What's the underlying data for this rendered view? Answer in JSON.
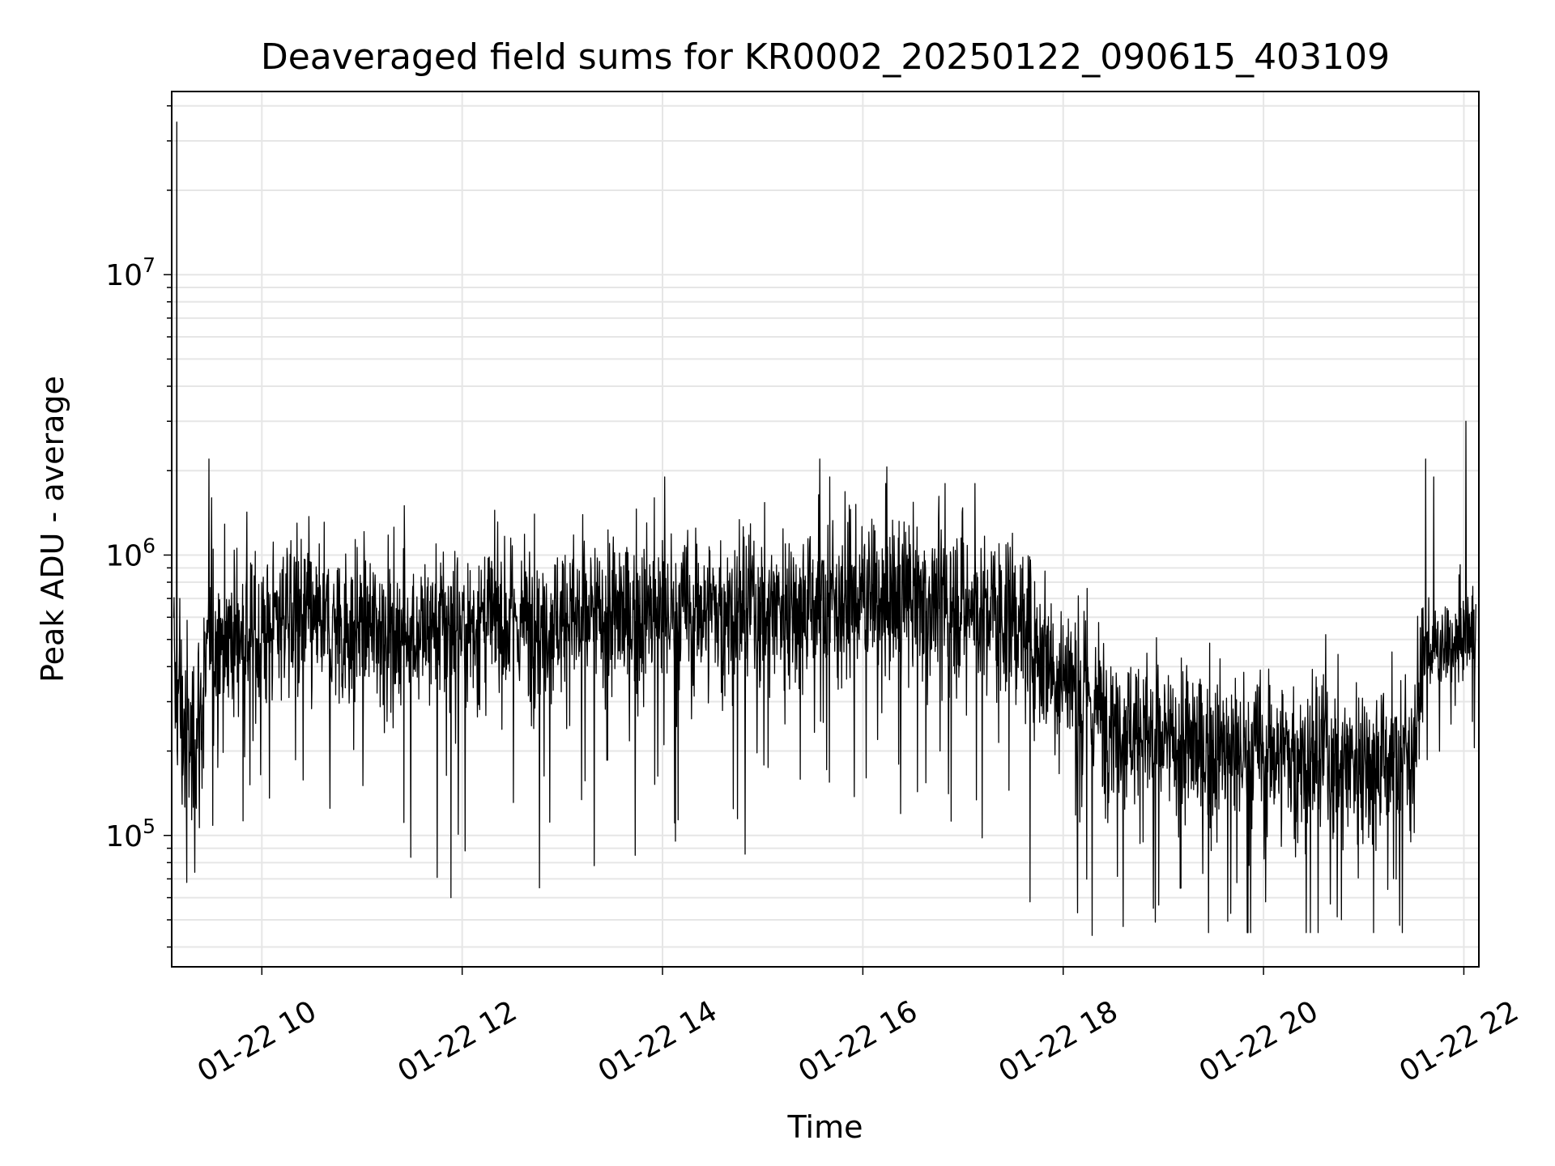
{
  "chart_data": {
    "type": "line",
    "title": "Deaveraged field sums for KR0002_20250122_090615_403109",
    "xlabel": "Time",
    "ylabel": "Peak ADU - average",
    "yscale": "log",
    "grid": true,
    "line_color": "#000000",
    "grid_color": "#e6e6e6",
    "xlim_hours": [
      9.1,
      22.15
    ],
    "ylim": [
      34000,
      45000000
    ],
    "xticks": [
      {
        "hour": 10,
        "label": "01-22 10"
      },
      {
        "hour": 12,
        "label": "01-22 12"
      },
      {
        "hour": 14,
        "label": "01-22 14"
      },
      {
        "hour": 16,
        "label": "01-22 16"
      },
      {
        "hour": 18,
        "label": "01-22 18"
      },
      {
        "hour": 20,
        "label": "01-22 20"
      },
      {
        "hour": 22,
        "label": "01-22 22"
      }
    ],
    "yticks": [
      {
        "value": 100000,
        "base": "10",
        "exp": "5"
      },
      {
        "value": 1000000,
        "base": "10",
        "exp": "6"
      },
      {
        "value": 10000000,
        "base": "10",
        "exp": "7"
      }
    ],
    "series": [
      {
        "x_hours": [
          9.1,
          9.2,
          9.3,
          9.4,
          9.5,
          9.75,
          10.0,
          10.25,
          10.5,
          10.75,
          11.0,
          11.5,
          12.0,
          12.5,
          13.0,
          13.5,
          14.0,
          14.5,
          15.0,
          15.5,
          16.0,
          16.5,
          17.0,
          17.5,
          17.7,
          18.0,
          18.3,
          18.7,
          19.0,
          19.5,
          20.0,
          20.5,
          21.0,
          21.3,
          21.5,
          21.62,
          21.8,
          22.0,
          22.15
        ],
        "median": [
          400000,
          250000,
          200000,
          280000,
          500000,
          520000,
          520000,
          650000,
          560000,
          550000,
          560000,
          540000,
          560000,
          580000,
          600000,
          590000,
          620000,
          640000,
          660000,
          690000,
          700000,
          700000,
          680000,
          600000,
          500000,
          380000,
          290000,
          240000,
          210000,
          200000,
          200000,
          190000,
          190000,
          190000,
          200000,
          460000,
          450000,
          520000,
          560000
        ],
        "spread": [
          0.45,
          0.6,
          0.6,
          0.55,
          0.45,
          0.45,
          0.45,
          0.45,
          0.45,
          0.45,
          0.45,
          0.45,
          0.45,
          0.45,
          0.45,
          0.45,
          0.45,
          0.45,
          0.45,
          0.45,
          0.45,
          0.45,
          0.45,
          0.45,
          0.45,
          0.45,
          0.45,
          0.45,
          0.45,
          0.45,
          0.45,
          0.45,
          0.45,
          0.45,
          0.45,
          0.25,
          0.25,
          0.25,
          0.25
        ],
        "spikes": [
          {
            "hour": 9.13,
            "value": 35000000
          },
          {
            "hour": 9.16,
            "value": 700000
          },
          {
            "hour": 9.23,
            "value": 68000
          },
          {
            "hour": 9.45,
            "value": 2200000
          },
          {
            "hour": 9.48,
            "value": 1600000
          },
          {
            "hour": 10.33,
            "value": 1300000
          },
          {
            "hour": 11.4,
            "value": 1500000
          },
          {
            "hour": 11.87,
            "value": 60000
          },
          {
            "hour": 12.7,
            "value": 1400000
          },
          {
            "hour": 12.75,
            "value": 65000
          },
          {
            "hour": 13.3,
            "value": 78000
          },
          {
            "hour": 13.9,
            "value": 1600000
          },
          {
            "hour": 14.0,
            "value": 1900000
          },
          {
            "hour": 15.55,
            "value": 2200000
          },
          {
            "hour": 15.65,
            "value": 1900000
          },
          {
            "hour": 16.8,
            "value": 1800000
          },
          {
            "hour": 17.1,
            "value": 1800000
          },
          {
            "hour": 17.65,
            "value": 58000
          },
          {
            "hour": 18.22,
            "value": 48000
          },
          {
            "hour": 18.27,
            "value": 44000
          },
          {
            "hour": 18.22,
            "value": 760000
          },
          {
            "hour": 18.88,
            "value": 55000
          },
          {
            "hour": 20.0,
            "value": 58000
          },
          {
            "hour": 20.6,
            "value": 520000
          },
          {
            "hour": 21.6,
            "value": 2200000
          },
          {
            "hour": 21.68,
            "value": 1900000
          },
          {
            "hour": 22.0,
            "value": 3000000
          },
          {
            "hour": 22.12,
            "value": 1100000
          }
        ]
      }
    ]
  }
}
